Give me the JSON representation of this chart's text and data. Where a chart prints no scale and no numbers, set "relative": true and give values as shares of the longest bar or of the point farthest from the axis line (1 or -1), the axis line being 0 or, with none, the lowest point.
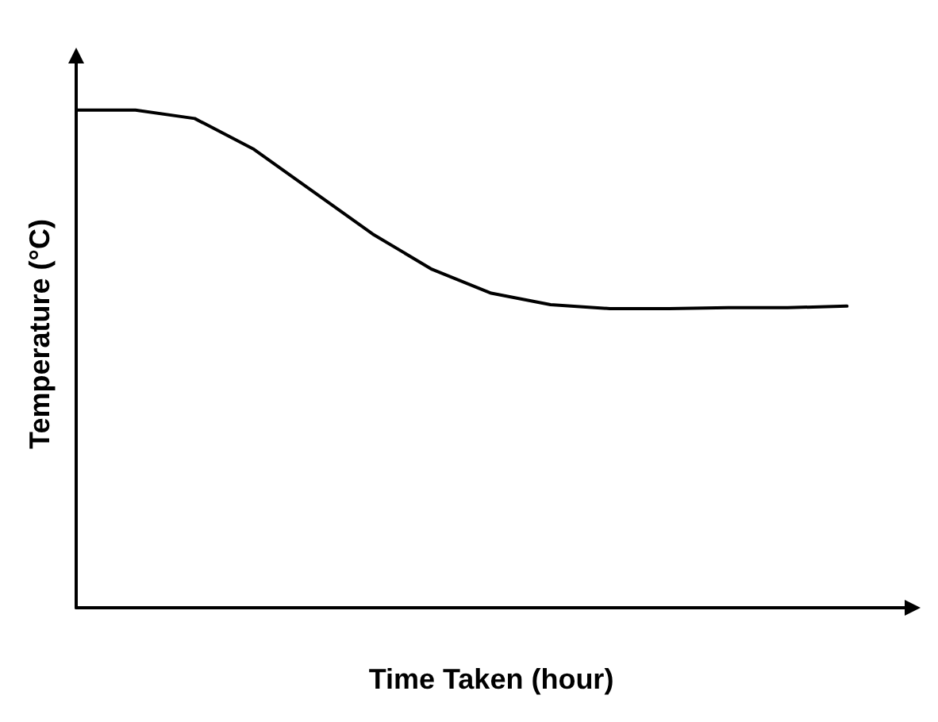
{
  "chart_data": {
    "type": "line",
    "xlabel": "Time Taken (hour)",
    "ylabel": "Temperature (°C)",
    "relative": true,
    "marker": "none",
    "line_style": "solid",
    "categories": [
      null,
      null,
      null,
      null,
      null,
      null,
      null,
      null,
      null,
      null,
      null,
      null,
      null,
      null
    ],
    "series": [
      {
        "color": "#000000",
        "values": [
          1,
          1,
          0.983,
          0.921,
          0.836,
          0.751,
          0.68,
          0.632,
          0.609,
          0.601,
          0.601,
          0.603,
          0.603,
          0.606
        ]
      }
    ]
  }
}
